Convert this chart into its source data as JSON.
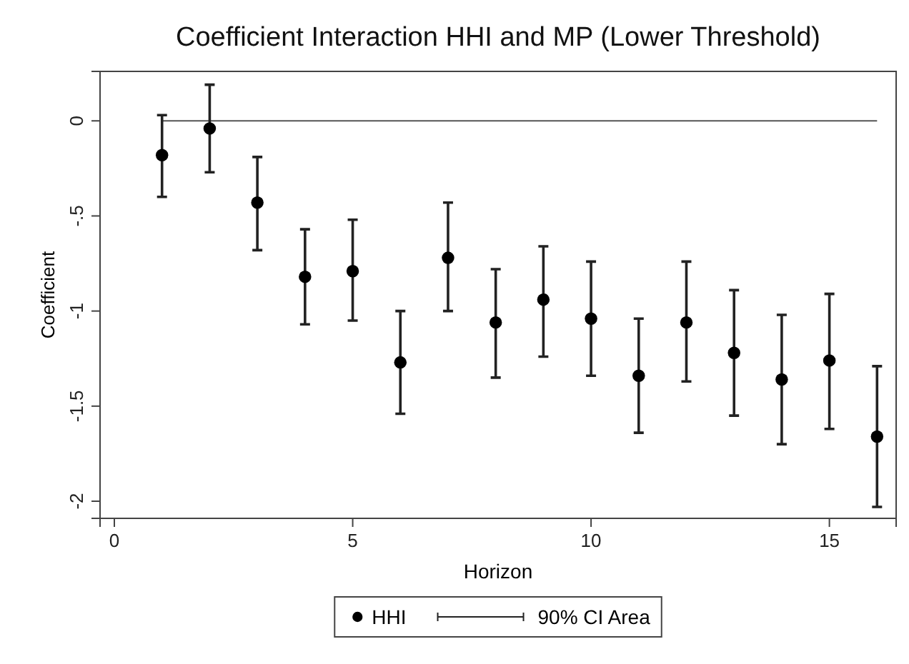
{
  "chart_data": {
    "type": "scatter",
    "title": "Coefficient Interaction HHI and MP (Lower Threshold)",
    "xlabel": "Horizon",
    "ylabel": "Coefficient",
    "x": [
      1,
      2,
      3,
      4,
      5,
      6,
      7,
      8,
      9,
      10,
      11,
      12,
      13,
      14,
      15,
      16
    ],
    "series": [
      {
        "name": "HHI",
        "color": "#000000",
        "values": [
          -0.18,
          -0.04,
          -0.43,
          -0.82,
          -0.79,
          -1.27,
          -0.72,
          -1.06,
          -0.94,
          -1.04,
          -1.34,
          -1.06,
          -1.22,
          -1.36,
          -1.26,
          -1.66
        ],
        "errors": [
          [
            -0.4,
            0.03
          ],
          [
            -0.27,
            0.19
          ],
          [
            -0.68,
            -0.19
          ],
          [
            -1.07,
            -0.57
          ],
          [
            -1.05,
            -0.52
          ],
          [
            -1.54,
            -1.0
          ],
          [
            -1.0,
            -0.43
          ],
          [
            -1.35,
            -0.78
          ],
          [
            -1.24,
            -0.66
          ],
          [
            -1.34,
            -0.74
          ],
          [
            -1.64,
            -1.04
          ],
          [
            -1.37,
            -0.74
          ],
          [
            -1.55,
            -0.89
          ],
          [
            -1.7,
            -1.02
          ],
          [
            -1.62,
            -0.91
          ],
          [
            -2.03,
            -1.29
          ]
        ]
      }
    ],
    "annotations": [
      "90% CI Area"
    ],
    "xlim": [
      -0.3,
      16.4
    ],
    "xticks": [
      0,
      5,
      10,
      15
    ],
    "ylim": [
      -2.09,
      0.26
    ],
    "yticks": [
      0,
      {
        "value": -0.5,
        "label": "-.5"
      },
      -1,
      {
        "value": -1.5,
        "label": "-1.5"
      },
      -2
    ],
    "ref_lines": [
      {
        "axis": "y",
        "value": 0,
        "color": "#555555"
      }
    ],
    "marker": "circle",
    "legend": "bottom",
    "grid": false
  }
}
